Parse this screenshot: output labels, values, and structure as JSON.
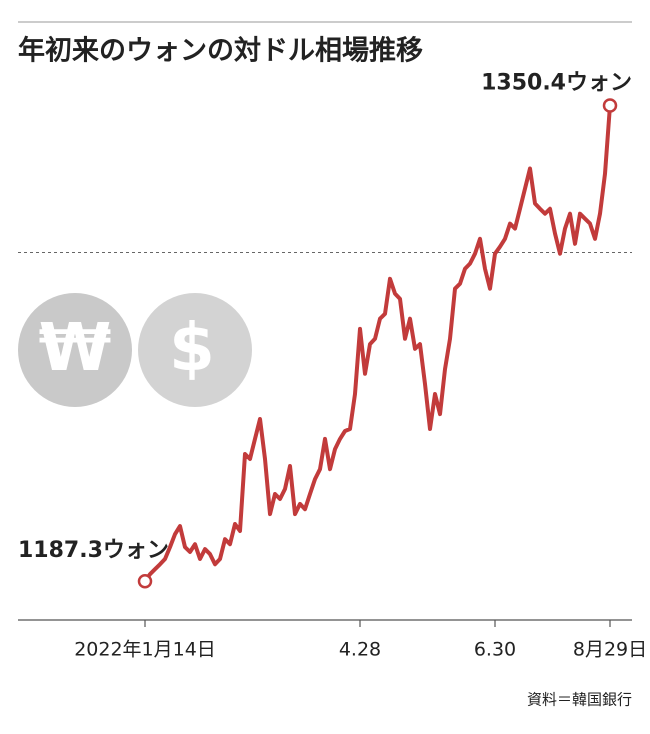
{
  "chart_data": {
    "type": "line",
    "title": "年初来のウォンの対ドル相場推移",
    "source": "資料＝韓国銀行",
    "icons": [
      "₩",
      "$"
    ],
    "categories": [
      "2022年1月14日",
      null,
      null,
      null,
      null,
      null,
      null,
      null,
      null,
      null,
      null,
      null,
      null,
      null,
      null,
      null,
      null,
      null,
      null,
      null,
      null,
      null,
      null,
      null,
      null,
      null,
      null,
      null,
      null,
      null,
      null,
      null,
      null,
      null,
      null,
      null,
      null,
      null,
      null,
      null,
      null,
      null,
      null,
      "4.28",
      null,
      null,
      null,
      null,
      null,
      null,
      null,
      null,
      null,
      null,
      null,
      null,
      null,
      null,
      null,
      null,
      null,
      null,
      null,
      null,
      null,
      null,
      null,
      null,
      null,
      null,
      "6.30",
      null,
      null,
      null,
      null,
      null,
      null,
      null,
      null,
      null,
      null,
      null,
      null,
      null,
      null,
      null,
      null,
      null,
      null,
      null,
      null,
      null,
      null,
      "8月29日"
    ],
    "values": [
      1187.3,
      1189.7,
      1191.4,
      1193.1,
      1194.9,
      1199.0,
      1203.4,
      1206.2,
      1199.0,
      1197.3,
      1200.0,
      1194.9,
      1198.3,
      1196.6,
      1193.1,
      1194.9,
      1201.7,
      1200.0,
      1206.9,
      1204.5,
      1230.9,
      1229.2,
      1236.1,
      1242.9,
      1229.2,
      1210.3,
      1217.2,
      1215.5,
      1218.9,
      1226.8,
      1210.3,
      1213.8,
      1212.0,
      1217.2,
      1222.3,
      1225.7,
      1236.1,
      1225.7,
      1232.6,
      1236.1,
      1238.8,
      1239.5,
      1251.5,
      1273.8,
      1258.4,
      1268.6,
      1270.4,
      1277.3,
      1279.0,
      1291.0,
      1285.9,
      1284.1,
      1270.4,
      1277.3,
      1267.0,
      1268.6,
      1254.9,
      1239.5,
      1251.5,
      1244.6,
      1260.0,
      1270.4,
      1287.6,
      1289.3,
      1294.4,
      1296.2,
      1299.6,
      1304.7,
      1294.4,
      1287.6,
      1299.6,
      1302.0,
      1304.7,
      1309.9,
      1308.2,
      1315.0,
      1321.9,
      1328.8,
      1316.8,
      1315.0,
      1313.3,
      1315.0,
      1306.5,
      1299.6,
      1308.2,
      1313.3,
      1303.0,
      1313.3,
      1311.6,
      1309.9,
      1304.7,
      1313.3,
      1327.0,
      1350.4
    ],
    "value_labels": [
      "1187.3ウォン",
      null,
      null,
      null,
      null,
      null,
      null,
      null,
      null,
      null,
      null,
      null,
      null,
      null,
      null,
      null,
      null,
      null,
      null,
      null,
      null,
      null,
      null,
      null,
      null,
      null,
      null,
      null,
      null,
      null,
      null,
      null,
      null,
      null,
      null,
      null,
      null,
      null,
      null,
      null,
      null,
      null,
      null,
      null,
      null,
      null,
      null,
      null,
      null,
      null,
      null,
      null,
      null,
      null,
      null,
      null,
      null,
      null,
      null,
      null,
      null,
      null,
      null,
      null,
      null,
      null,
      null,
      null,
      null,
      null,
      null,
      null,
      null,
      null,
      null,
      null,
      null,
      null,
      null,
      null,
      null,
      null,
      null,
      null,
      null,
      null,
      null,
      null,
      null,
      null,
      null,
      null,
      null,
      "1350.4ウォン"
    ],
    "color": "#c23b3b",
    "ylim": [
      1174,
      1366
    ],
    "reference_line": 1300
  }
}
